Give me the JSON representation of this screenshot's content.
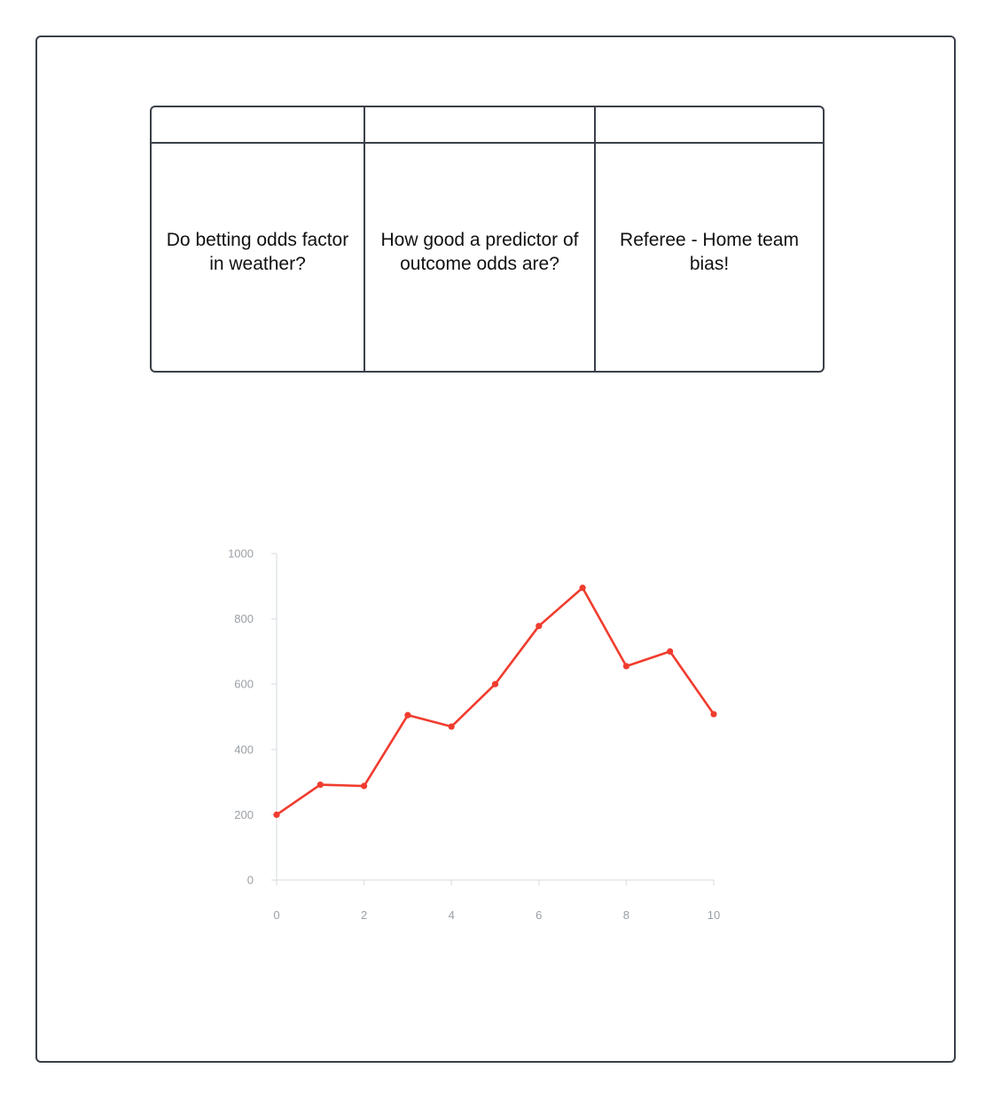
{
  "table": {
    "columns": [
      {
        "header": "",
        "text": "Do betting odds factor in weather?"
      },
      {
        "header": "",
        "text": "How good a predictor of outcome odds are?"
      },
      {
        "header": "",
        "text": "Referee - Home team bias!"
      }
    ]
  },
  "chart_data": {
    "type": "line",
    "title": "",
    "xlabel": "",
    "ylabel": "",
    "xlim": [
      0,
      10
    ],
    "ylim": [
      0,
      1000
    ],
    "x_ticks": [
      "0",
      "2",
      "4",
      "6",
      "8",
      "10"
    ],
    "y_ticks": [
      "0",
      "200",
      "400",
      "600",
      "800",
      "1000"
    ],
    "grid": false,
    "legend": "none",
    "color": "#f03c2e",
    "series": [
      {
        "x": [
          0,
          1,
          2,
          3,
          4,
          5,
          6,
          7,
          8,
          9,
          10
        ],
        "values": [
          200,
          292,
          288,
          505,
          470,
          600,
          778,
          895,
          655,
          700,
          508
        ]
      }
    ]
  }
}
